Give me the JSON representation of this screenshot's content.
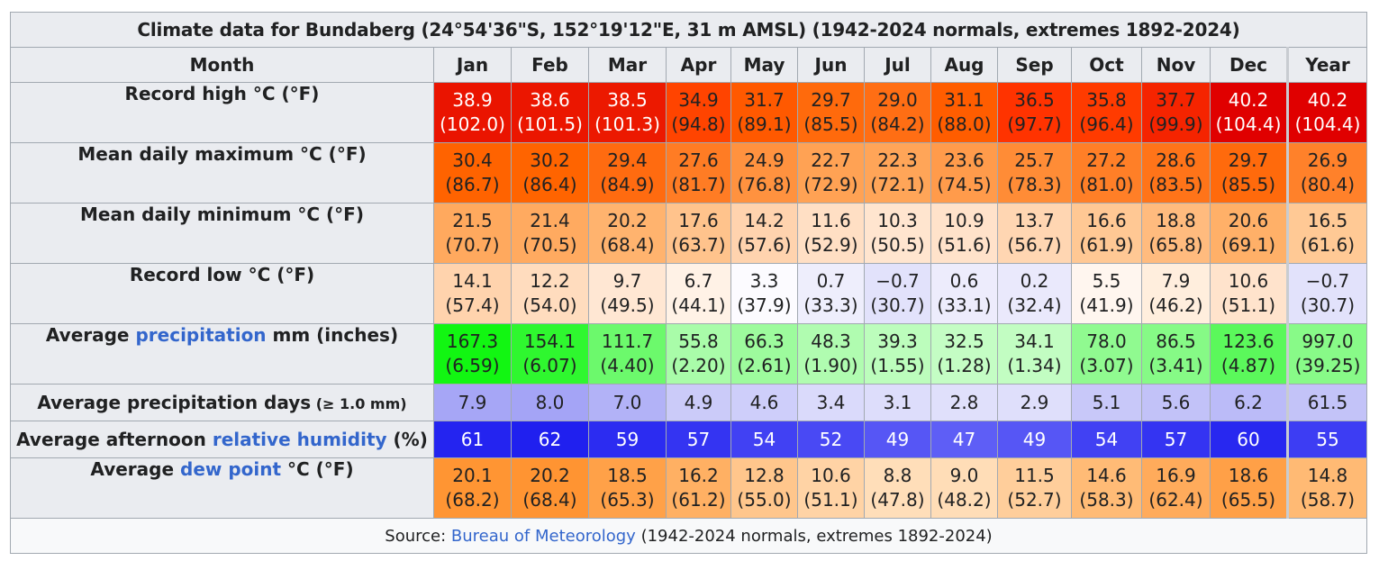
{
  "caption": "Climate data for Bundaberg (24°54'36\"S, 152°19'12\"E, 31 m AMSL) (1942-2024 normals, extremes 1892-2024)",
  "month_header": "Month",
  "months": [
    "Jan",
    "Feb",
    "Mar",
    "Apr",
    "May",
    "Jun",
    "Jul",
    "Aug",
    "Sep",
    "Oct",
    "Nov",
    "Dec",
    "Year"
  ],
  "rows": [
    {
      "label_parts": [
        "Record high °C (°F)"
      ],
      "cells": [
        {
          "v": "38.9",
          "s": "(102.0)",
          "bg": "#ea1400",
          "fg": "#ffffff"
        },
        {
          "v": "38.6",
          "s": "(101.5)",
          "bg": "#eb1600",
          "fg": "#ffffff"
        },
        {
          "v": "38.5",
          "s": "(101.3)",
          "bg": "#ec1900",
          "fg": "#ffffff"
        },
        {
          "v": "34.9",
          "s": "(94.8)",
          "bg": "#ff4400",
          "fg": "#202122"
        },
        {
          "v": "31.7",
          "s": "(89.1)",
          "bg": "#ff5900",
          "fg": "#202122"
        },
        {
          "v": "29.7",
          "s": "(85.5)",
          "bg": "#ff6a0c",
          "fg": "#202122"
        },
        {
          "v": "29.0",
          "s": "(84.2)",
          "bg": "#ff6e14",
          "fg": "#202122"
        },
        {
          "v": "31.1",
          "s": "(88.0)",
          "bg": "#ff5d00",
          "fg": "#202122"
        },
        {
          "v": "36.5",
          "s": "(97.7)",
          "bg": "#ff3300",
          "fg": "#202122"
        },
        {
          "v": "35.8",
          "s": "(96.4)",
          "bg": "#ff3b00",
          "fg": "#202122"
        },
        {
          "v": "37.7",
          "s": "(99.9)",
          "bg": "#f52400",
          "fg": "#202122"
        },
        {
          "v": "40.2",
          "s": "(104.4)",
          "bg": "#e00000",
          "fg": "#ffffff"
        },
        {
          "v": "40.2",
          "s": "(104.4)",
          "bg": "#e00000",
          "fg": "#ffffff"
        }
      ]
    },
    {
      "label_parts": [
        "Mean daily maximum °C (°F)"
      ],
      "cells": [
        {
          "v": "30.4",
          "s": "(86.7)",
          "bg": "#ff6300",
          "fg": "#202122"
        },
        {
          "v": "30.2",
          "s": "(86.4)",
          "bg": "#ff6400",
          "fg": "#202122"
        },
        {
          "v": "29.4",
          "s": "(84.9)",
          "bg": "#ff6b10",
          "fg": "#202122"
        },
        {
          "v": "27.6",
          "s": "(81.7)",
          "bg": "#ff7c24",
          "fg": "#202122"
        },
        {
          "v": "24.9",
          "s": "(76.8)",
          "bg": "#ff923f",
          "fg": "#202122"
        },
        {
          "v": "22.7",
          "s": "(72.9)",
          "bg": "#ffa254",
          "fg": "#202122"
        },
        {
          "v": "22.3",
          "s": "(72.1)",
          "bg": "#ffa558",
          "fg": "#202122"
        },
        {
          "v": "23.6",
          "s": "(74.5)",
          "bg": "#ff9b4b",
          "fg": "#202122"
        },
        {
          "v": "25.7",
          "s": "(78.3)",
          "bg": "#ff8c36",
          "fg": "#202122"
        },
        {
          "v": "27.2",
          "s": "(81.0)",
          "bg": "#ff7f27",
          "fg": "#202122"
        },
        {
          "v": "28.6",
          "s": "(83.5)",
          "bg": "#ff7419",
          "fg": "#202122"
        },
        {
          "v": "29.7",
          "s": "(85.5)",
          "bg": "#ff6a0c",
          "fg": "#202122"
        },
        {
          "v": "26.9",
          "s": "(80.4)",
          "bg": "#ff812a",
          "fg": "#202122"
        }
      ]
    },
    {
      "label_parts": [
        "Mean daily minimum °C (°F)"
      ],
      "cells": [
        {
          "v": "21.5",
          "s": "(70.7)",
          "bg": "#ffa95e",
          "fg": "#202122"
        },
        {
          "v": "21.4",
          "s": "(70.5)",
          "bg": "#ffaa60",
          "fg": "#202122"
        },
        {
          "v": "20.2",
          "s": "(68.4)",
          "bg": "#ffb36e",
          "fg": "#202122"
        },
        {
          "v": "17.6",
          "s": "(63.7)",
          "bg": "#ffc38c",
          "fg": "#202122"
        },
        {
          "v": "14.2",
          "s": "(57.6)",
          "bg": "#ffd3ae",
          "fg": "#202122"
        },
        {
          "v": "11.6",
          "s": "(52.9)",
          "bg": "#ffdfc4",
          "fg": "#202122"
        },
        {
          "v": "10.3",
          "s": "(50.5)",
          "bg": "#ffe5cf",
          "fg": "#202122"
        },
        {
          "v": "10.9",
          "s": "(51.6)",
          "bg": "#ffe2ca",
          "fg": "#202122"
        },
        {
          "v": "13.7",
          "s": "(56.7)",
          "bg": "#ffd6b2",
          "fg": "#202122"
        },
        {
          "v": "16.6",
          "s": "(61.9)",
          "bg": "#ffc894",
          "fg": "#202122"
        },
        {
          "v": "18.8",
          "s": "(65.8)",
          "bg": "#ffbb7e",
          "fg": "#202122"
        },
        {
          "v": "20.6",
          "s": "(69.1)",
          "bg": "#ffb068",
          "fg": "#202122"
        },
        {
          "v": "16.5",
          "s": "(61.6)",
          "bg": "#ffc995",
          "fg": "#202122"
        }
      ]
    },
    {
      "label_parts": [
        "Record low °C (°F)"
      ],
      "cells": [
        {
          "v": "14.1",
          "s": "(57.4)",
          "bg": "#ffd3ad",
          "fg": "#202122"
        },
        {
          "v": "12.2",
          "s": "(54.0)",
          "bg": "#ffdcbe",
          "fg": "#202122"
        },
        {
          "v": "9.7",
          "s": "(49.5)",
          "bg": "#ffe7d3",
          "fg": "#202122"
        },
        {
          "v": "6.7",
          "s": "(44.1)",
          "bg": "#fff2e6",
          "fg": "#202122"
        },
        {
          "v": "3.3",
          "s": "(37.9)",
          "bg": "#fcfbff",
          "fg": "#202122"
        },
        {
          "v": "0.7",
          "s": "(33.3)",
          "bg": "#eeeefc",
          "fg": "#202122"
        },
        {
          "v": "−0.7",
          "s": "(30.7)",
          "bg": "#e2e2fb",
          "fg": "#202122"
        },
        {
          "v": "0.6",
          "s": "(33.1)",
          "bg": "#edecfc",
          "fg": "#202122"
        },
        {
          "v": "0.2",
          "s": "(32.4)",
          "bg": "#eae9fc",
          "fg": "#202122"
        },
        {
          "v": "5.5",
          "s": "(41.9)",
          "bg": "#fff6ef",
          "fg": "#202122"
        },
        {
          "v": "7.9",
          "s": "(46.2)",
          "bg": "#ffeedd",
          "fg": "#202122"
        },
        {
          "v": "10.6",
          "s": "(51.1)",
          "bg": "#ffe3cc",
          "fg": "#202122"
        },
        {
          "v": "−0.7",
          "s": "(30.7)",
          "bg": "#e2e2fb",
          "fg": "#202122"
        }
      ]
    },
    {
      "label_parts": [
        "Average ",
        "precipitation",
        " mm (inches)"
      ],
      "cells": [
        {
          "v": "167.3",
          "s": "(6.59)",
          "bg": "#12f612",
          "fg": "#202122"
        },
        {
          "v": "154.1",
          "s": "(6.07)",
          "bg": "#2ff72f",
          "fg": "#202122"
        },
        {
          "v": "111.7",
          "s": "(4.40)",
          "bg": "#6cf96c",
          "fg": "#202122"
        },
        {
          "v": "55.8",
          "s": "(2.20)",
          "bg": "#a9fca9",
          "fg": "#202122"
        },
        {
          "v": "66.3",
          "s": "(2.61)",
          "bg": "#9dfb9d",
          "fg": "#202122"
        },
        {
          "v": "48.3",
          "s": "(1.90)",
          "bg": "#b0fcb0",
          "fg": "#202122"
        },
        {
          "v": "39.3",
          "s": "(1.55)",
          "bg": "#bcfdbc",
          "fg": "#202122"
        },
        {
          "v": "32.5",
          "s": "(1.28)",
          "bg": "#c4fdc4",
          "fg": "#202122"
        },
        {
          "v": "34.1",
          "s": "(1.34)",
          "bg": "#c2fdc2",
          "fg": "#202122"
        },
        {
          "v": "78.0",
          "s": "(3.07)",
          "bg": "#90fa90",
          "fg": "#202122"
        },
        {
          "v": "86.5",
          "s": "(3.41)",
          "bg": "#86fa86",
          "fg": "#202122"
        },
        {
          "v": "123.6",
          "s": "(4.87)",
          "bg": "#5bf85b",
          "fg": "#202122"
        },
        {
          "v": "997.0",
          "s": "(39.25)",
          "bg": "#88fa88",
          "fg": "#202122"
        }
      ]
    },
    {
      "label_parts": [
        "Average precipitation days",
        " (≥ 1.0 mm)"
      ],
      "cells": [
        {
          "v": "7.9",
          "bg": "#a6a6f6",
          "fg": "#202122"
        },
        {
          "v": "8.0",
          "bg": "#a4a4f6",
          "fg": "#202122"
        },
        {
          "v": "7.0",
          "bg": "#b2b2f7",
          "fg": "#202122"
        },
        {
          "v": "4.9",
          "bg": "#cbcbf9",
          "fg": "#202122"
        },
        {
          "v": "4.6",
          "bg": "#cecefa",
          "fg": "#202122"
        },
        {
          "v": "3.4",
          "bg": "#dadafb",
          "fg": "#202122"
        },
        {
          "v": "3.1",
          "bg": "#ddddfb",
          "fg": "#202122"
        },
        {
          "v": "2.8",
          "bg": "#e0e0fb",
          "fg": "#202122"
        },
        {
          "v": "2.9",
          "bg": "#dfdffb",
          "fg": "#202122"
        },
        {
          "v": "5.1",
          "bg": "#c8c8f9",
          "fg": "#202122"
        },
        {
          "v": "5.6",
          "bg": "#c2c2f8",
          "fg": "#202122"
        },
        {
          "v": "6.2",
          "bg": "#bbbbf8",
          "fg": "#202122"
        },
        {
          "v": "61.5",
          "bg": "#c3c3f8",
          "fg": "#202122"
        }
      ]
    },
    {
      "label_parts": [
        "Average afternoon ",
        "relative humidity",
        " (%)"
      ],
      "cells": [
        {
          "v": "61",
          "bg": "#2424f0",
          "fg": "#ffffff"
        },
        {
          "v": "62",
          "bg": "#2020ef",
          "fg": "#ffffff"
        },
        {
          "v": "59",
          "bg": "#2c2cf1",
          "fg": "#ffffff"
        },
        {
          "v": "57",
          "bg": "#3434f2",
          "fg": "#ffffff"
        },
        {
          "v": "54",
          "bg": "#4141f3",
          "fg": "#ffffff"
        },
        {
          "v": "52",
          "bg": "#4949f4",
          "fg": "#ffffff"
        },
        {
          "v": "49",
          "bg": "#5656f5",
          "fg": "#ffffff"
        },
        {
          "v": "47",
          "bg": "#5e5ef6",
          "fg": "#ffffff"
        },
        {
          "v": "49",
          "bg": "#5656f5",
          "fg": "#ffffff"
        },
        {
          "v": "54",
          "bg": "#4141f3",
          "fg": "#ffffff"
        },
        {
          "v": "57",
          "bg": "#3434f2",
          "fg": "#ffffff"
        },
        {
          "v": "60",
          "bg": "#2828f0",
          "fg": "#ffffff"
        },
        {
          "v": "55",
          "bg": "#3d3df3",
          "fg": "#ffffff"
        }
      ]
    },
    {
      "label_parts": [
        "Average ",
        "dew point",
        " °C (°F)"
      ],
      "cells": [
        {
          "v": "20.1",
          "s": "(68.2)",
          "bg": "#ff9533",
          "fg": "#202122"
        },
        {
          "v": "20.2",
          "s": "(68.4)",
          "bg": "#ff9432",
          "fg": "#202122"
        },
        {
          "v": "18.5",
          "s": "(65.3)",
          "bg": "#ffa148",
          "fg": "#202122"
        },
        {
          "v": "16.2",
          "s": "(61.2)",
          "bg": "#ffb063",
          "fg": "#202122"
        },
        {
          "v": "12.8",
          "s": "(55.0)",
          "bg": "#ffc68c",
          "fg": "#202122"
        },
        {
          "v": "10.6",
          "s": "(51.1)",
          "bg": "#ffd3a5",
          "fg": "#202122"
        },
        {
          "v": "8.8",
          "s": "(47.8)",
          "bg": "#ffdeb9",
          "fg": "#202122"
        },
        {
          "v": "9.0",
          "s": "(48.2)",
          "bg": "#ffddb7",
          "fg": "#202122"
        },
        {
          "v": "11.5",
          "s": "(52.7)",
          "bg": "#ffce9b",
          "fg": "#202122"
        },
        {
          "v": "14.6",
          "s": "(58.3)",
          "bg": "#ffbb76",
          "fg": "#202122"
        },
        {
          "v": "16.9",
          "s": "(62.4)",
          "bg": "#ffab5b",
          "fg": "#202122"
        },
        {
          "v": "18.6",
          "s": "(65.5)",
          "bg": "#ffa047",
          "fg": "#202122"
        },
        {
          "v": "14.8",
          "s": "(58.7)",
          "bg": "#ffba74",
          "fg": "#202122"
        }
      ]
    }
  ],
  "source_prefix": "Source: ",
  "source_link": "Bureau of Meteorology",
  "source_suffix": " (1942-2024 normals, extremes 1892-2024)",
  "colors": {
    "link": "#3366cc",
    "header_bg": "#eaecf0",
    "border": "#a2a9b1"
  }
}
